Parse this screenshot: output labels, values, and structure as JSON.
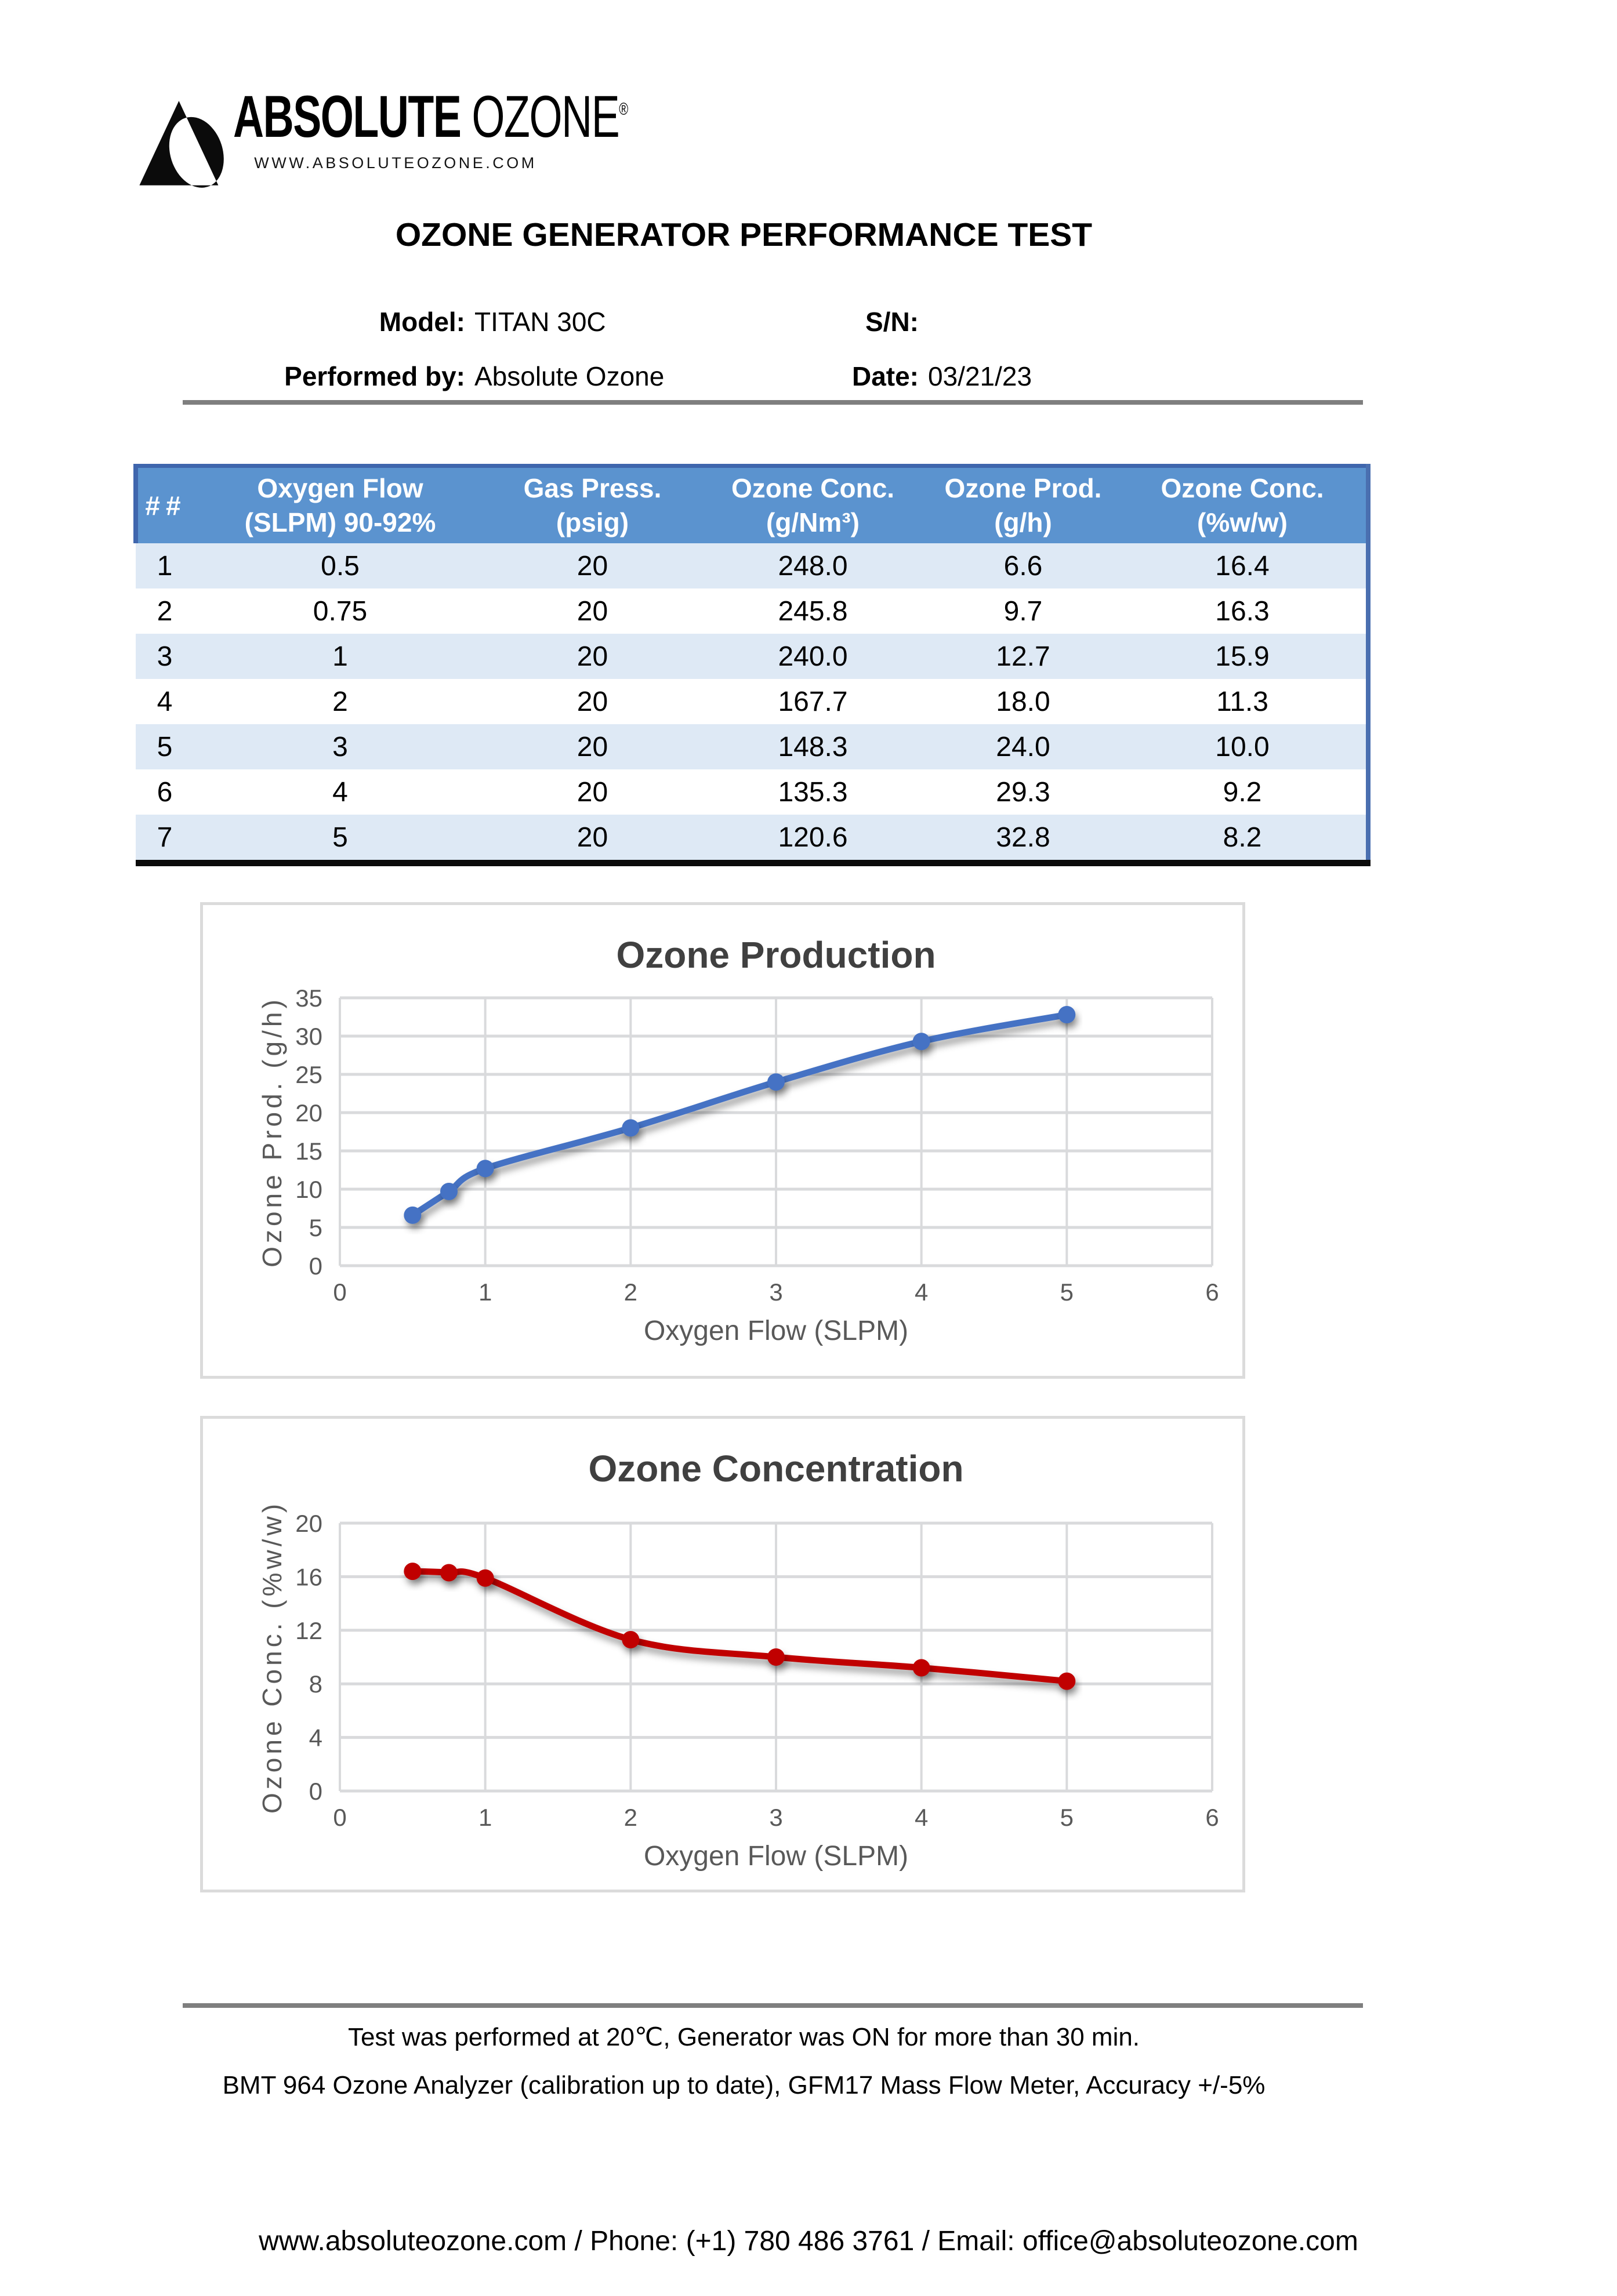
{
  "logo": {
    "brand_bold": "ABSOLUTE",
    "brand_light": "OZONE",
    "registered": "®",
    "website": "WWW.ABSOLUTEOZONE.COM"
  },
  "title": "OZONE GENERATOR PERFORMANCE TEST",
  "info": {
    "model_label": "Model:",
    "model_value": "TITAN 30C",
    "sn_label": "S/N:",
    "sn_value": "",
    "performed_label": "Performed by:",
    "performed_value": "Absolute Ozone",
    "date_label": "Date:",
    "date_value": "03/21/23"
  },
  "table": {
    "headers": [
      {
        "line1": "##",
        "line2": ""
      },
      {
        "line1": "Oxygen Flow",
        "line2": "(SLPM) 90-92%"
      },
      {
        "line1": "Gas Press.",
        "line2": "(psig)"
      },
      {
        "line1": "Ozone Conc.",
        "line2": "(g/Nm³)"
      },
      {
        "line1": "Ozone Prod.",
        "line2": "(g/h)"
      },
      {
        "line1": "Ozone Conc.",
        "line2": "(%w/w)"
      }
    ],
    "rows": [
      [
        "1",
        "0.5",
        "20",
        "248.0",
        "6.6",
        "16.4"
      ],
      [
        "2",
        "0.75",
        "20",
        "245.8",
        "9.7",
        "16.3"
      ],
      [
        "3",
        "1",
        "20",
        "240.0",
        "12.7",
        "15.9"
      ],
      [
        "4",
        "2",
        "20",
        "167.7",
        "18.0",
        "11.3"
      ],
      [
        "5",
        "3",
        "20",
        "148.3",
        "24.0",
        "10.0"
      ],
      [
        "6",
        "4",
        "20",
        "135.3",
        "29.3",
        "9.2"
      ],
      [
        "7",
        "5",
        "20",
        "120.6",
        "32.8",
        "8.2"
      ]
    ]
  },
  "chart_data": [
    {
      "type": "line",
      "title": "Ozone Production",
      "x": [
        0.5,
        0.75,
        1,
        2,
        3,
        4,
        5
      ],
      "y": [
        6.6,
        9.7,
        12.7,
        18.0,
        24.0,
        29.3,
        32.8
      ],
      "xlabel": "Oxygen Flow (SLPM)",
      "ylabel": "Ozone Prod. (g/h)",
      "xlim": [
        0,
        6
      ],
      "ylim": [
        0,
        35
      ],
      "xticks": [
        0,
        1,
        2,
        3,
        4,
        5,
        6
      ],
      "yticks": [
        0,
        5,
        10,
        15,
        20,
        25,
        30,
        35
      ],
      "grid": true,
      "legend": "none",
      "line_color": "#4472C4",
      "marker": "circle"
    },
    {
      "type": "line",
      "title": "Ozone Concentration",
      "x": [
        0.5,
        0.75,
        1,
        2,
        3,
        4,
        5
      ],
      "y": [
        16.4,
        16.3,
        15.9,
        11.3,
        10.0,
        9.2,
        8.2
      ],
      "xlabel": "Oxygen Flow (SLPM)",
      "ylabel": "Ozone Conc. (%w/w)",
      "xlim": [
        0,
        6
      ],
      "ylim": [
        0,
        20
      ],
      "xticks": [
        0,
        1,
        2,
        3,
        4,
        5,
        6
      ],
      "yticks": [
        0,
        4,
        8,
        12,
        16,
        20
      ],
      "grid": true,
      "legend": "none",
      "line_color": "#C00000",
      "marker": "circle"
    }
  ],
  "notes": {
    "note1": "Test was performed at 20℃, Generator was ON for more than 30 min.",
    "note2": "BMT 964 Ozone Analyzer (calibration up to date), GFM17 Mass Flow Meter, Accuracy +/-5%"
  },
  "footer": {
    "contact": "www.absoluteozone.com / Phone: (+1) 780 486 3761 / Email: office@absoluteozone.com"
  },
  "colors": {
    "header_bg": "#5B93CF",
    "header_border": "#3F66AD",
    "row_alt": "#DEE9F5",
    "rule": "#7F7F7F",
    "grid": "#D9DADC",
    "tick_text": "#595959",
    "chart_title": "#404040",
    "series_blue": "#4472C4",
    "series_red": "#C00000"
  }
}
